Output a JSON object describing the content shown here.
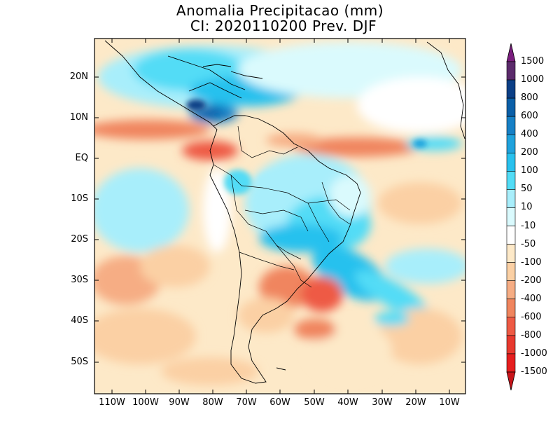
{
  "title_line1": "Anomalia Precipitacao (mm)",
  "title_line2": "CI: 2020110200 Prev. DJF",
  "lat_labels": [
    "20N",
    "10N",
    "EQ",
    "10S",
    "20S",
    "30S",
    "40S",
    "50S"
  ],
  "lon_labels": [
    "110W",
    "100W",
    "90W",
    "80W",
    "70W",
    "60W",
    "50W",
    "40W",
    "30W",
    "20W",
    "10W"
  ],
  "colorbar": {
    "labels": [
      "1500",
      "1000",
      "800",
      "600",
      "400",
      "200",
      "100",
      "50",
      "10",
      "-10",
      "-50",
      "-100",
      "-200",
      "-400",
      "-600",
      "-800",
      "-1000",
      "-1500"
    ],
    "colors": [
      "#7a1e7e",
      "#5b2a6b",
      "#0b3f86",
      "#0a5fa8",
      "#1680c6",
      "#1fa2dd",
      "#28c1ee",
      "#52dcf6",
      "#a8eefb",
      "#dafafd",
      "#ffffff",
      "#fde9c8",
      "#fbd0a4",
      "#f6ad84",
      "#f0855e",
      "#ee5a44",
      "#e8392e",
      "#e61e1e",
      "#c8141a"
    ]
  }
}
